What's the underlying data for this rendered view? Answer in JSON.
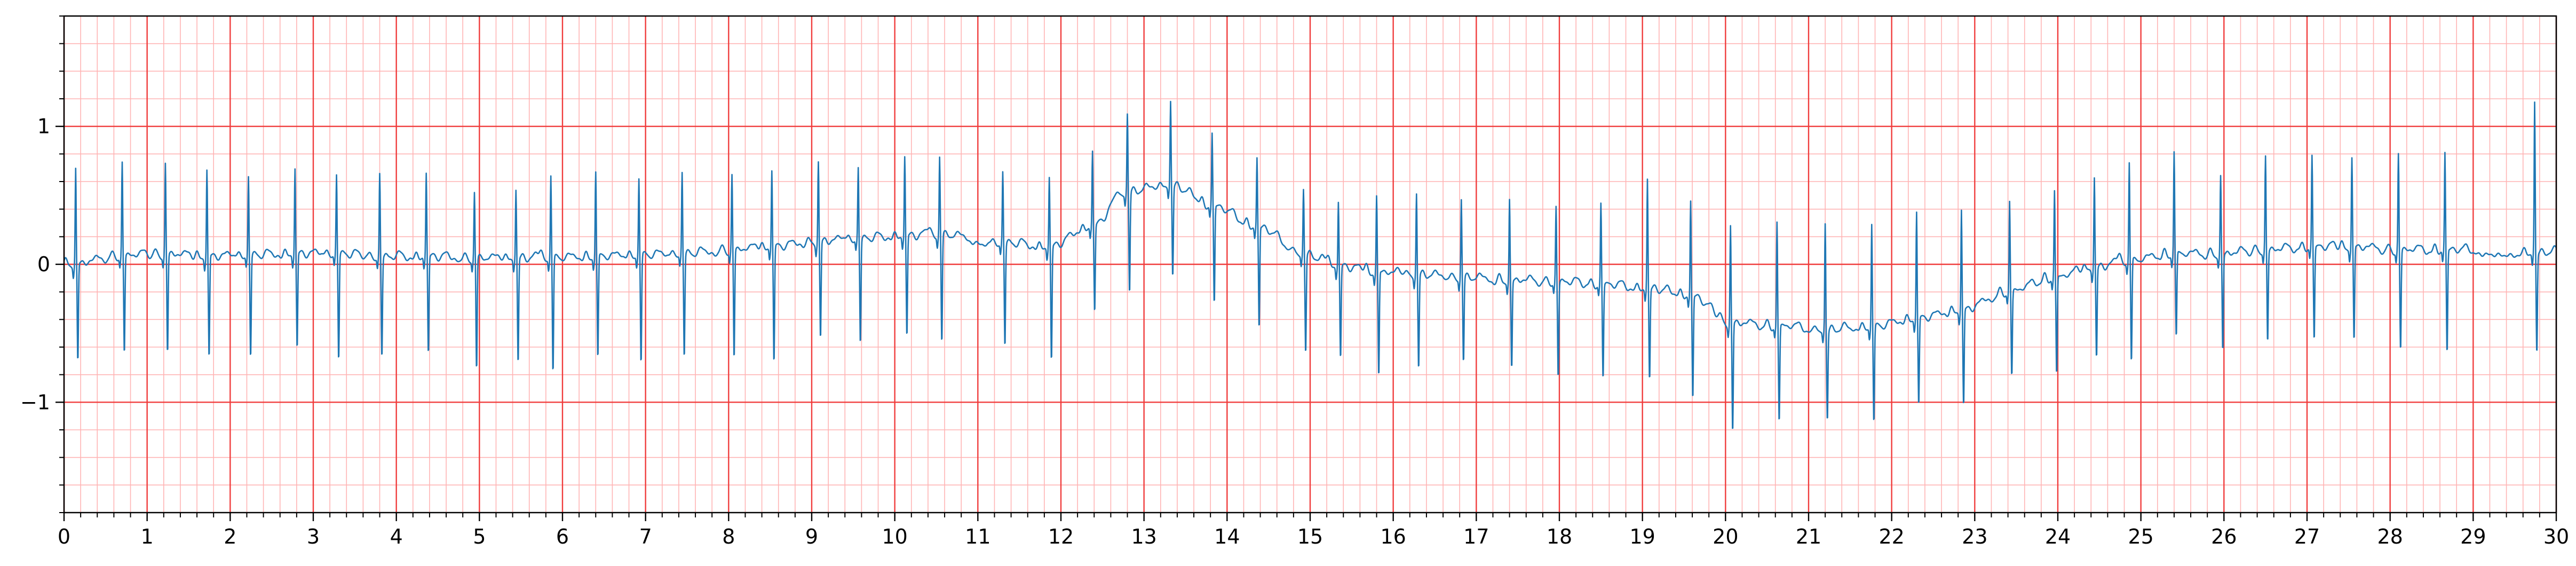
{
  "chart_data": {
    "type": "line",
    "title": "",
    "xlabel": "",
    "ylabel": "",
    "xlim": [
      0,
      30
    ],
    "ylim": [
      -1.8,
      1.8
    ],
    "x_ticks": [
      0,
      1,
      2,
      3,
      4,
      5,
      6,
      7,
      8,
      9,
      10,
      11,
      12,
      13,
      14,
      15,
      16,
      17,
      18,
      19,
      20,
      21,
      22,
      23,
      24,
      25,
      26,
      27,
      28,
      29,
      30
    ],
    "x_tick_labels": [
      "0",
      "1",
      "2",
      "3",
      "4",
      "5",
      "6",
      "7",
      "8",
      "9",
      "10",
      "11",
      "12",
      "13",
      "14",
      "15",
      "16",
      "17",
      "18",
      "19",
      "20",
      "21",
      "22",
      "23",
      "24",
      "25",
      "26",
      "27",
      "28",
      "29",
      "30"
    ],
    "y_ticks": [
      -1,
      0,
      1
    ],
    "y_tick_labels": [
      "−1",
      "0",
      "1"
    ],
    "grid": {
      "major": true,
      "minor": true,
      "major_x_step": 1,
      "major_y_step": 1,
      "minor_x_step": 0.2,
      "minor_y_step": 0.2,
      "major_color": "#f03c3c",
      "minor_color": "#ffb4b4"
    },
    "colors": {
      "trace": "#1f77b4",
      "axes": "#000000",
      "background": "#ffffff"
    },
    "series": [
      {
        "sample_rate_hz": 250,
        "beats": [
          {
            "t": 0.14,
            "b": -0.02,
            "r": 0.62,
            "s": -0.73
          },
          {
            "t": 0.7,
            "b": 0.04,
            "r": 0.66,
            "s": -0.66
          },
          {
            "t": 1.22,
            "b": 0.05,
            "r": 0.65,
            "s": -0.66
          },
          {
            "t": 1.72,
            "b": 0.03,
            "r": 0.62,
            "s": -0.7
          },
          {
            "t": 2.22,
            "b": 0.04,
            "r": 0.57,
            "s": -0.68
          },
          {
            "t": 2.78,
            "b": 0.05,
            "r": 0.63,
            "s": -0.63
          },
          {
            "t": 3.28,
            "b": 0.05,
            "r": 0.58,
            "s": -0.7
          },
          {
            "t": 3.8,
            "b": 0.03,
            "r": 0.58,
            "s": -0.68
          },
          {
            "t": 4.36,
            "b": 0.03,
            "r": 0.6,
            "s": -0.66
          },
          {
            "t": 4.94,
            "b": 0.02,
            "r": 0.45,
            "s": -0.78
          },
          {
            "t": 5.44,
            "b": 0.02,
            "r": 0.47,
            "s": -0.73
          },
          {
            "t": 5.86,
            "b": 0.02,
            "r": 0.58,
            "s": -0.8
          },
          {
            "t": 6.4,
            "b": 0.03,
            "r": 0.61,
            "s": -0.7
          },
          {
            "t": 6.92,
            "b": 0.04,
            "r": 0.56,
            "s": -0.73
          },
          {
            "t": 7.44,
            "b": 0.05,
            "r": 0.6,
            "s": -0.68
          },
          {
            "t": 8.04,
            "b": 0.08,
            "r": 0.57,
            "s": -0.7
          },
          {
            "t": 8.52,
            "b": 0.1,
            "r": 0.62,
            "s": -0.73
          },
          {
            "t": 9.08,
            "b": 0.14,
            "r": 0.67,
            "s": -0.56
          },
          {
            "t": 9.56,
            "b": 0.16,
            "r": 0.63,
            "s": -0.58
          },
          {
            "t": 10.12,
            "b": 0.18,
            "r": 0.72,
            "s": -0.54
          },
          {
            "t": 10.54,
            "b": 0.19,
            "r": 0.71,
            "s": -0.58
          },
          {
            "t": 11.3,
            "b": 0.13,
            "r": 0.6,
            "s": -0.6
          },
          {
            "t": 11.86,
            "b": 0.1,
            "r": 0.57,
            "s": -0.72
          },
          {
            "t": 12.38,
            "b": 0.25,
            "r": 0.76,
            "s": -0.36
          },
          {
            "t": 12.8,
            "b": 0.5,
            "r": 1.02,
            "s": -0.22
          },
          {
            "t": 13.32,
            "b": 0.55,
            "r": 1.11,
            "s": -0.1
          },
          {
            "t": 13.82,
            "b": 0.4,
            "r": 0.88,
            "s": -0.3
          },
          {
            "t": 14.36,
            "b": 0.25,
            "r": 0.7,
            "s": -0.48
          },
          {
            "t": 14.92,
            "b": 0.05,
            "r": 0.47,
            "s": -0.65
          },
          {
            "t": 15.34,
            "b": -0.04,
            "r": 0.39,
            "s": -0.7
          },
          {
            "t": 15.8,
            "b": -0.08,
            "r": 0.42,
            "s": -0.84
          },
          {
            "t": 16.28,
            "b": -0.1,
            "r": 0.44,
            "s": -0.77
          },
          {
            "t": 16.82,
            "b": -0.12,
            "r": 0.4,
            "s": -0.72
          },
          {
            "t": 17.4,
            "b": -0.14,
            "r": 0.39,
            "s": -0.78
          },
          {
            "t": 17.96,
            "b": -0.15,
            "r": 0.34,
            "s": -0.83
          },
          {
            "t": 18.5,
            "b": -0.17,
            "r": 0.37,
            "s": -0.84
          },
          {
            "t": 19.06,
            "b": -0.2,
            "r": 0.55,
            "s": -0.85
          },
          {
            "t": 19.58,
            "b": -0.25,
            "r": 0.39,
            "s": -0.99
          },
          {
            "t": 20.06,
            "b": -0.45,
            "r": 0.2,
            "s": -1.24
          },
          {
            "t": 20.62,
            "b": -0.47,
            "r": 0.23,
            "s": -1.16
          },
          {
            "t": 21.2,
            "b": -0.5,
            "r": 0.22,
            "s": -1.14
          },
          {
            "t": 21.76,
            "b": -0.48,
            "r": 0.23,
            "s": -1.16
          },
          {
            "t": 22.3,
            "b": -0.42,
            "r": 0.32,
            "s": -1.04
          },
          {
            "t": 22.84,
            "b": -0.36,
            "r": 0.33,
            "s": -1.05
          },
          {
            "t": 23.42,
            "b": -0.22,
            "r": 0.38,
            "s": -0.83
          },
          {
            "t": 23.96,
            "b": -0.12,
            "r": 0.46,
            "s": -0.82
          },
          {
            "t": 24.44,
            "b": -0.05,
            "r": 0.56,
            "s": -0.7
          },
          {
            "t": 24.86,
            "b": 0.0,
            "r": 0.67,
            "s": -0.73
          },
          {
            "t": 25.4,
            "b": 0.05,
            "r": 0.75,
            "s": -0.55
          },
          {
            "t": 25.96,
            "b": 0.05,
            "r": 0.56,
            "s": -0.65
          },
          {
            "t": 26.5,
            "b": 0.08,
            "r": 0.7,
            "s": -0.58
          },
          {
            "t": 27.06,
            "b": 0.1,
            "r": 0.72,
            "s": -0.56
          },
          {
            "t": 27.54,
            "b": 0.1,
            "r": 0.7,
            "s": -0.58
          },
          {
            "t": 28.1,
            "b": 0.08,
            "r": 0.72,
            "s": -0.64
          },
          {
            "t": 28.66,
            "b": 0.08,
            "r": 0.74,
            "s": -0.66
          },
          {
            "t": 29.74,
            "b": 0.06,
            "r": 1.1,
            "s": -0.66
          }
        ]
      }
    ]
  }
}
